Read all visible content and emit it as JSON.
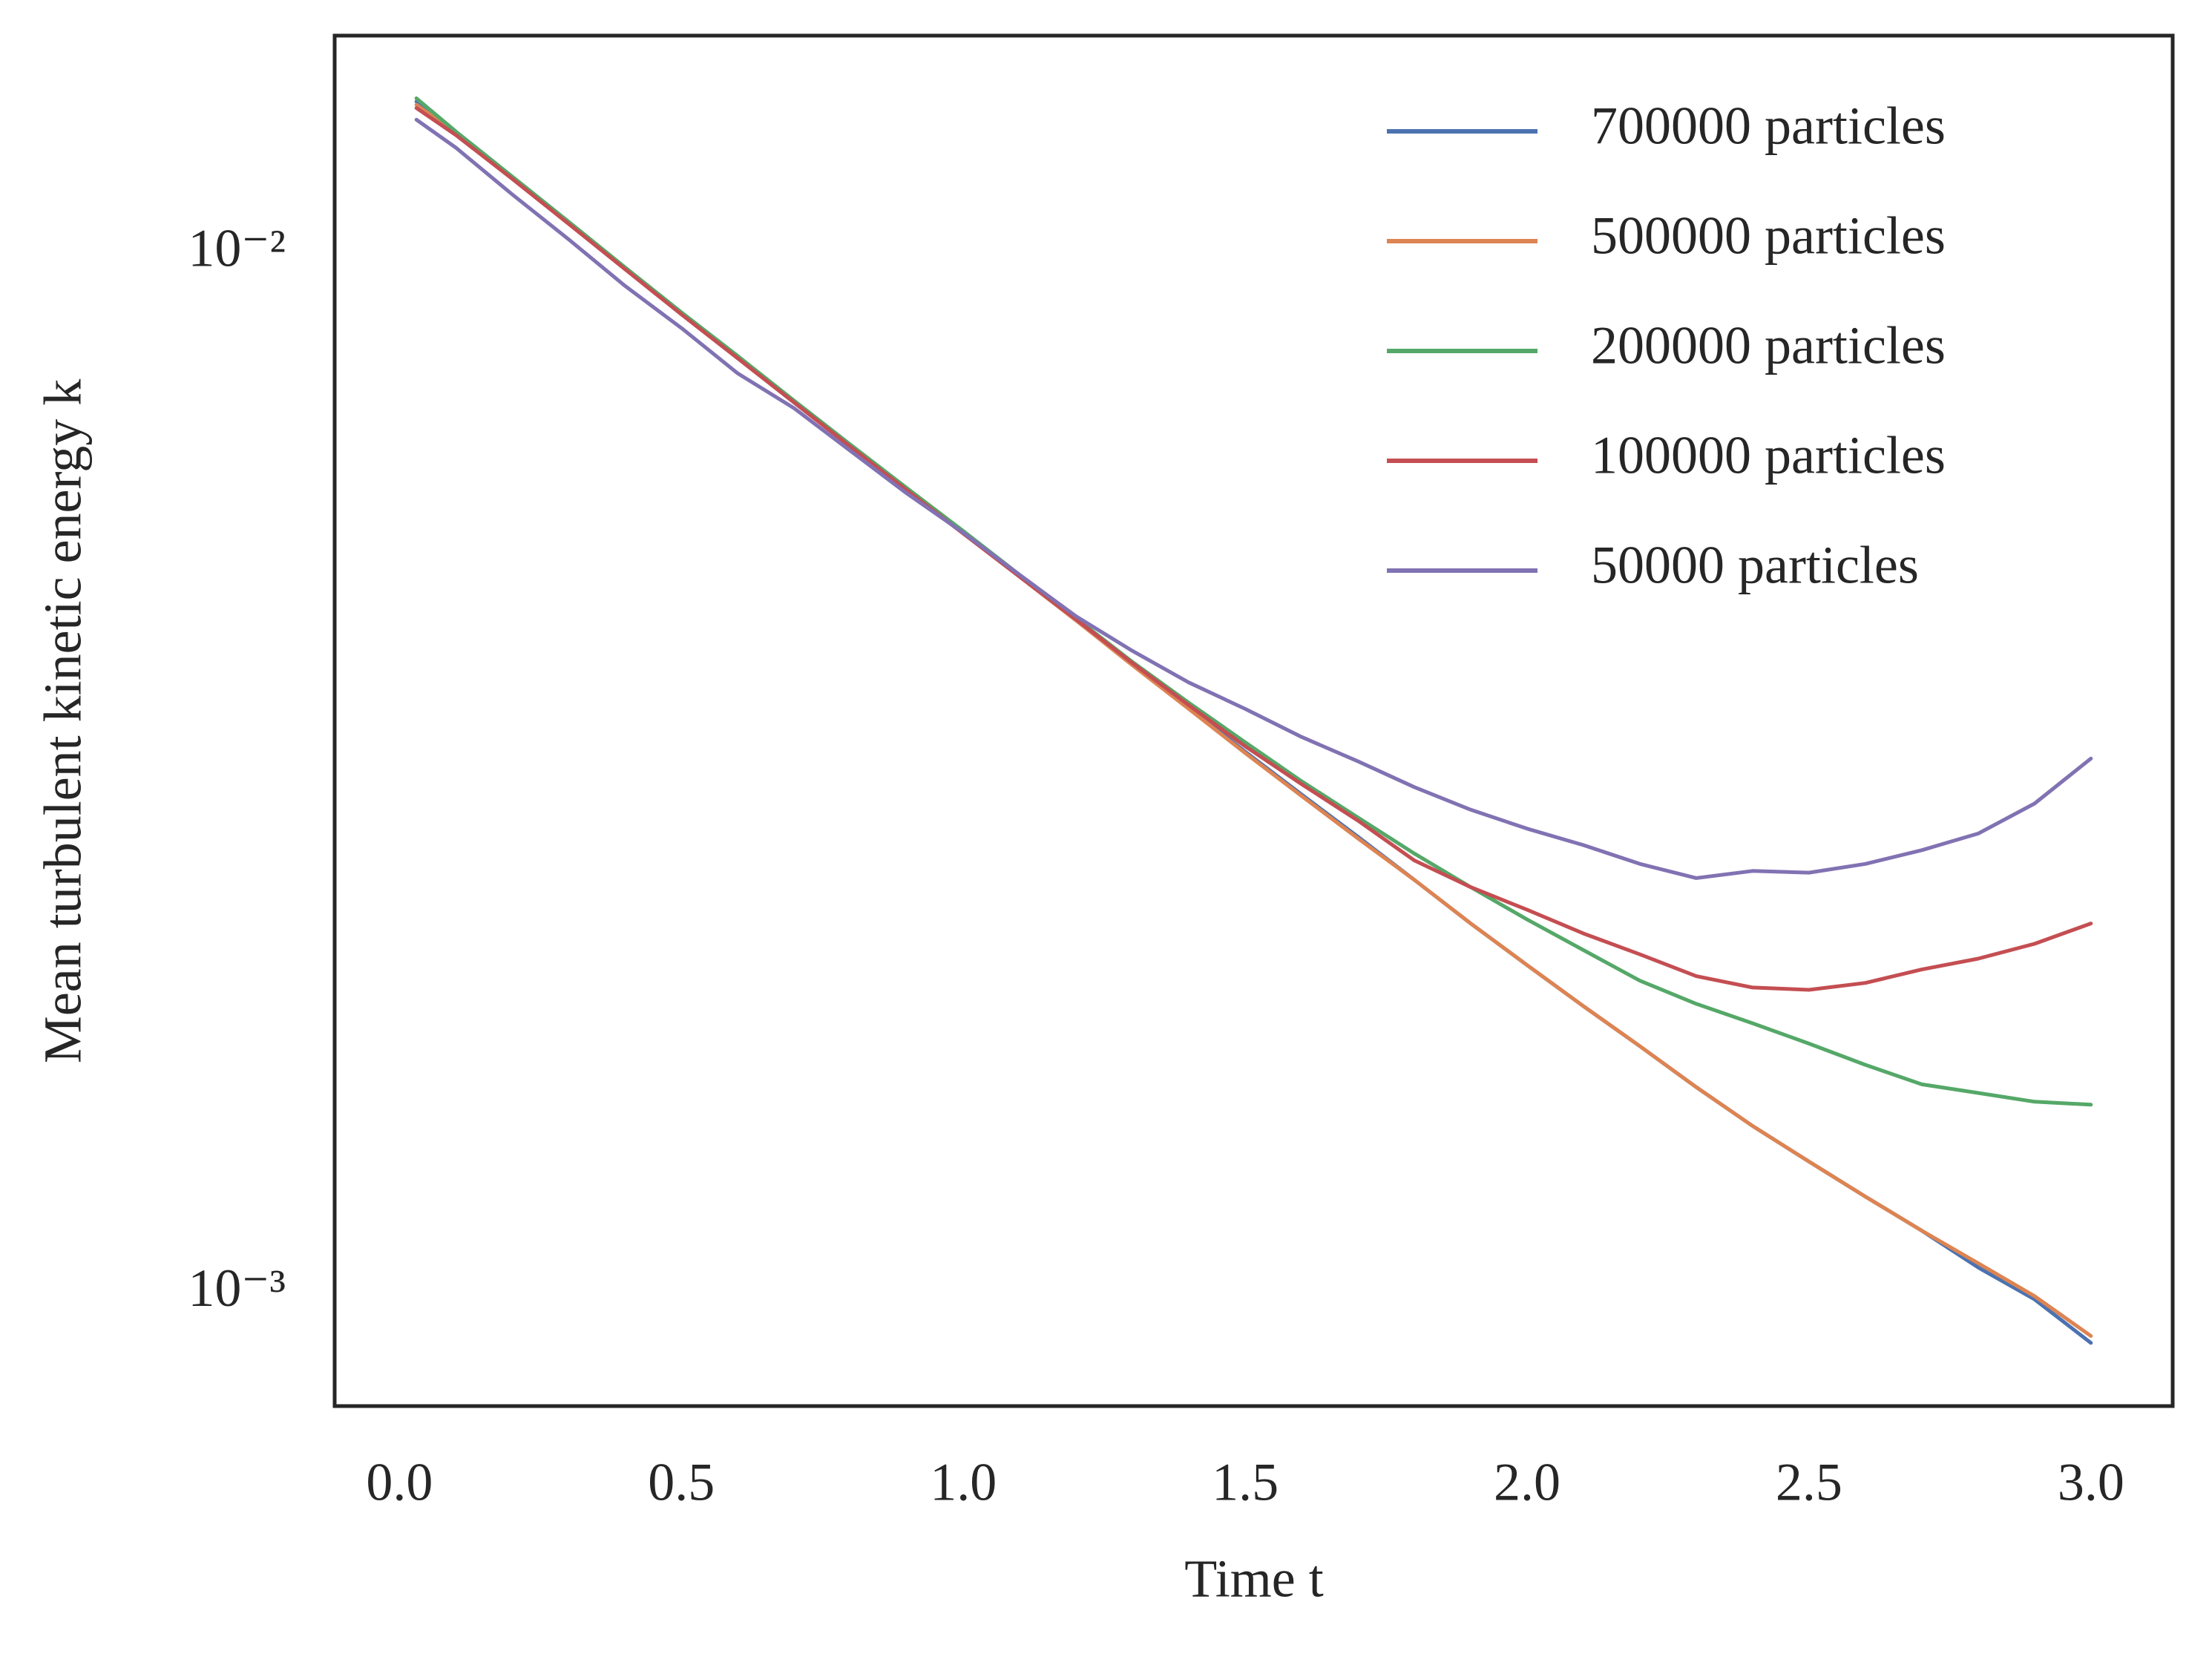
{
  "chart_data": {
    "type": "line",
    "x_label": "Time t",
    "y_label": "Mean turbulent kinetic energy k",
    "x": [
      0.03,
      0.1,
      0.2,
      0.3,
      0.4,
      0.5,
      0.6,
      0.7,
      0.8,
      0.9,
      1.0,
      1.1,
      1.2,
      1.3,
      1.4,
      1.5,
      1.6,
      1.7,
      1.8,
      1.9,
      2.0,
      2.1,
      2.2,
      2.3,
      2.4,
      2.5,
      2.6,
      2.7,
      2.8,
      2.9,
      3.0
    ],
    "series": [
      {
        "name": "700000 particles",
        "color": "#4c72b0",
        "values": [
          0.014,
          0.01308,
          0.01184,
          0.01071,
          0.00969,
          0.00877,
          0.00796,
          0.00721,
          0.00654,
          0.00594,
          0.00539,
          0.00489,
          0.00444,
          0.00403,
          0.00366,
          0.00332,
          0.00302,
          0.00275,
          0.0025,
          0.00227,
          0.00207,
          0.00189,
          0.00173,
          0.00158,
          0.00145,
          0.00134,
          0.00124,
          0.00115,
          0.00106,
          0.000988,
          0.000897
        ]
      },
      {
        "name": "500000 particles",
        "color": "#dd8452",
        "values": [
          0.0139,
          0.01305,
          0.01182,
          0.0107,
          0.00968,
          0.00876,
          0.00795,
          0.0072,
          0.00653,
          0.00593,
          0.00539,
          0.00489,
          0.00444,
          0.00402,
          0.00365,
          0.00331,
          0.00301,
          0.00274,
          0.0025,
          0.00227,
          0.00207,
          0.00189,
          0.00173,
          0.00158,
          0.00145,
          0.00134,
          0.00124,
          0.00115,
          0.00107,
          0.000995,
          0.000911
        ]
      },
      {
        "name": "200000 particles",
        "color": "#55a868",
        "values": [
          0.0141,
          0.0131,
          0.01186,
          0.01073,
          0.0097,
          0.00878,
          0.00797,
          0.00722,
          0.00655,
          0.00595,
          0.00541,
          0.00491,
          0.00446,
          0.00405,
          0.0037,
          0.00339,
          0.00311,
          0.00287,
          0.00265,
          0.00246,
          0.00229,
          0.00214,
          0.002,
          0.0019,
          0.00182,
          0.00174,
          0.00166,
          0.00159,
          0.00156,
          0.00153,
          0.00152
        ]
      },
      {
        "name": "100000 particles",
        "color": "#c44e52",
        "values": [
          0.0138,
          0.013,
          0.0118,
          0.01068,
          0.00966,
          0.00874,
          0.00793,
          0.00719,
          0.00652,
          0.00592,
          0.00538,
          0.00489,
          0.00445,
          0.00404,
          0.00368,
          0.00336,
          0.00309,
          0.00285,
          0.00261,
          0.00246,
          0.00234,
          0.00222,
          0.00212,
          0.00202,
          0.00197,
          0.00196,
          0.00199,
          0.00205,
          0.0021,
          0.00217,
          0.00227
        ]
      },
      {
        "name": "50000 particles",
        "color": "#8172b3",
        "values": [
          0.01345,
          0.01264,
          0.0114,
          0.01032,
          0.00931,
          0.00848,
          0.00767,
          0.0071,
          0.00646,
          0.00588,
          0.00539,
          0.00491,
          0.00448,
          0.00415,
          0.00387,
          0.00365,
          0.00343,
          0.00325,
          0.00307,
          0.00292,
          0.0028,
          0.0027,
          0.00259,
          0.00251,
          0.00255,
          0.00254,
          0.00259,
          0.00267,
          0.00277,
          0.00296,
          0.00327
        ]
      }
    ],
    "xlim": [
      -0.115,
      3.145
    ],
    "ylim": [
      0.00078,
      0.0162
    ],
    "y_scale": "log",
    "xticks": [
      {
        "value": 0,
        "label": "0.0"
      },
      0.5,
      {
        "value": 1,
        "label": "1.0"
      },
      1.5,
      {
        "value": 2,
        "label": "2.0"
      },
      2.5,
      {
        "value": 3,
        "label": "3.0"
      }
    ],
    "yticks": [
      {
        "value": 0.01,
        "label": "10⁻²"
      },
      {
        "value": 0.001,
        "label": "10⁻³"
      }
    ],
    "grid": false,
    "legend": "upper right"
  }
}
